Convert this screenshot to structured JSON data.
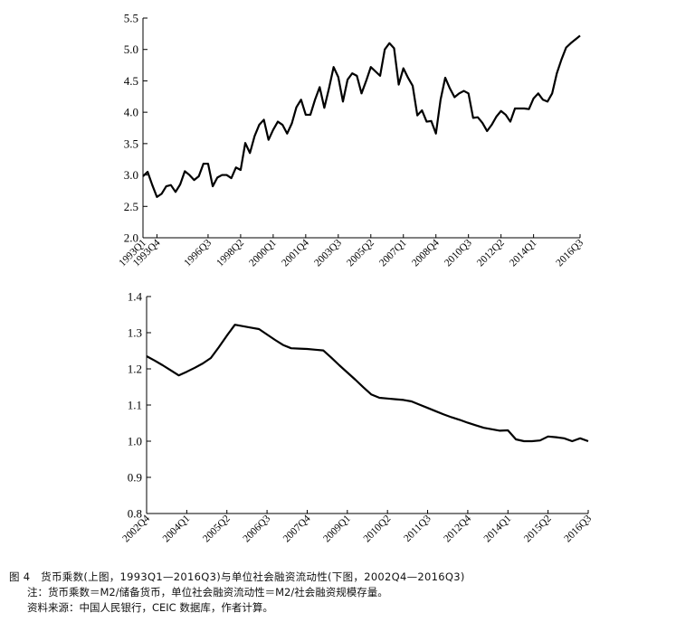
{
  "chart_data": [
    {
      "type": "line",
      "title": "",
      "xlabel": "",
      "ylabel": "",
      "ylim": [
        2.0,
        5.5
      ],
      "yticks": [
        "2.0",
        "2.5",
        "3.0",
        "3.5",
        "4.0",
        "4.5",
        "5.0",
        "5.5"
      ],
      "xtick_labels": [
        "1993Q1",
        "1993Q4",
        "1996Q3",
        "1998Q2",
        "2000Q1",
        "2001Q4",
        "2003Q3",
        "2005Q2",
        "2007Q1",
        "2008Q4",
        "2010Q3",
        "2012Q2",
        "2014Q1",
        "2016Q3"
      ],
      "x": [
        "1993Q1",
        "1993Q2",
        "1993Q3",
        "1993Q4",
        "1994Q1",
        "1994Q2",
        "1994Q3",
        "1994Q4",
        "1995Q1",
        "1995Q2",
        "1995Q3",
        "1995Q4",
        "1996Q1",
        "1996Q2",
        "1996Q3",
        "1996Q4",
        "1997Q1",
        "1997Q2",
        "1997Q3",
        "1997Q4",
        "1998Q1",
        "1998Q2",
        "1998Q3",
        "1998Q4",
        "1999Q1",
        "1999Q2",
        "1999Q3",
        "1999Q4",
        "2000Q1",
        "2000Q2",
        "2000Q3",
        "2000Q4",
        "2001Q1",
        "2001Q2",
        "2001Q3",
        "2001Q4",
        "2002Q1",
        "2002Q2",
        "2002Q3",
        "2002Q4",
        "2003Q1",
        "2003Q2",
        "2003Q3",
        "2003Q4",
        "2004Q1",
        "2004Q2",
        "2004Q3",
        "2004Q4",
        "2005Q1",
        "2005Q2",
        "2005Q3",
        "2005Q4",
        "2006Q1",
        "2006Q2",
        "2006Q3",
        "2006Q4",
        "2007Q1",
        "2007Q2",
        "2007Q3",
        "2007Q4",
        "2008Q1",
        "2008Q2",
        "2008Q3",
        "2008Q4",
        "2009Q1",
        "2009Q2",
        "2009Q3",
        "2009Q4",
        "2010Q1",
        "2010Q2",
        "2010Q3",
        "2010Q4",
        "2011Q1",
        "2011Q2",
        "2011Q3",
        "2011Q4",
        "2012Q1",
        "2012Q2",
        "2012Q3",
        "2012Q4",
        "2013Q1",
        "2013Q2",
        "2013Q3",
        "2013Q4",
        "2014Q1",
        "2014Q2",
        "2014Q3",
        "2014Q4",
        "2015Q1",
        "2015Q2",
        "2015Q3",
        "2015Q4",
        "2016Q1",
        "2016Q2",
        "2016Q3"
      ],
      "series": [
        {
          "values": [
            2.98,
            3.05,
            2.84,
            2.65,
            2.7,
            2.82,
            2.84,
            2.73,
            2.85,
            3.06,
            3.0,
            2.92,
            2.98,
            3.18,
            3.18,
            2.82,
            2.96,
            3.0,
            3.0,
            2.95,
            3.12,
            3.08,
            3.51,
            3.35,
            3.62,
            3.8,
            3.88,
            3.56,
            3.72,
            3.85,
            3.8,
            3.66,
            3.82,
            4.08,
            4.2,
            3.96,
            3.96,
            4.2,
            4.4,
            4.07,
            4.38,
            4.72,
            4.56,
            4.17,
            4.52,
            4.62,
            4.58,
            4.3,
            4.5,
            4.72,
            4.65,
            4.58,
            5.0,
            5.1,
            5.02,
            4.44,
            4.7,
            4.55,
            4.42,
            3.95,
            4.03,
            3.85,
            3.86,
            3.66,
            4.2,
            4.55,
            4.38,
            4.24,
            4.3,
            4.34,
            4.3,
            3.91,
            3.92,
            3.83,
            3.7,
            3.8,
            3.93,
            4.02,
            3.96,
            3.85,
            4.06,
            4.06,
            4.06,
            4.05,
            4.22,
            4.3,
            4.2,
            4.17,
            4.3,
            4.62,
            4.84,
            5.03,
            5.1,
            5.16,
            5.22
          ]
        }
      ]
    },
    {
      "type": "line",
      "title": "",
      "xlabel": "",
      "ylabel": "",
      "ylim": [
        0.8,
        1.4
      ],
      "yticks": [
        "0.8",
        "0.9",
        "1.0",
        "1.1",
        "1.2",
        "1.3",
        "1.4"
      ],
      "xtick_labels": [
        "2002Q4",
        "2004Q1",
        "2005Q2",
        "2006Q3",
        "2007Q4",
        "2009Q1",
        "2010Q2",
        "2011Q3",
        "2012Q4",
        "2014Q1",
        "2015Q2",
        "2016Q3"
      ],
      "x": [
        "2002Q4",
        "2003Q1",
        "2003Q2",
        "2003Q3",
        "2003Q4",
        "2004Q1",
        "2004Q2",
        "2004Q3",
        "2004Q4",
        "2005Q1",
        "2005Q2",
        "2005Q3",
        "2005Q4",
        "2006Q1",
        "2006Q2",
        "2006Q3",
        "2006Q4",
        "2007Q1",
        "2007Q2",
        "2007Q3",
        "2007Q4",
        "2008Q1",
        "2008Q2",
        "2008Q3",
        "2008Q4",
        "2009Q1",
        "2009Q2",
        "2009Q3",
        "2009Q4",
        "2010Q1",
        "2010Q2",
        "2010Q3",
        "2010Q4",
        "2011Q1",
        "2011Q2",
        "2011Q3",
        "2011Q4",
        "2012Q1",
        "2012Q2",
        "2012Q3",
        "2012Q4",
        "2013Q1",
        "2013Q2",
        "2013Q3",
        "2013Q4",
        "2014Q1",
        "2014Q2",
        "2014Q3",
        "2014Q4",
        "2015Q1",
        "2015Q2",
        "2015Q3",
        "2015Q4",
        "2016Q1",
        "2016Q2",
        "2016Q3"
      ],
      "series": [
        {
          "values": [
            1.235,
            1.223,
            1.21,
            1.196,
            1.182,
            1.192,
            1.203,
            1.215,
            1.23,
            1.26,
            1.292,
            1.322,
            1.318,
            1.314,
            1.31,
            1.295,
            1.28,
            1.266,
            1.257,
            1.256,
            1.255,
            1.253,
            1.251,
            1.231,
            1.21,
            1.19,
            1.17,
            1.149,
            1.129,
            1.12,
            1.118,
            1.116,
            1.114,
            1.11,
            1.101,
            1.092,
            1.083,
            1.074,
            1.066,
            1.059,
            1.051,
            1.044,
            1.037,
            1.033,
            1.029,
            1.03,
            1.005,
            1.0,
            1.0,
            1.002,
            1.013,
            1.011,
            1.008,
            1.0,
            1.008,
            1.0
          ]
        }
      ]
    }
  ],
  "caption": {
    "line1": "图 4　货币乘数(上图，1993Q1—2016Q3)与单位社会融资流动性(下图，2002Q4—2016Q3)",
    "line2": "注：货币乘数＝M2/储备货币，单位社会融资流动性＝M2/社会融资规模存量。",
    "line3": "资料来源：中国人民银行，CEIC 数据库，作者计算。"
  }
}
